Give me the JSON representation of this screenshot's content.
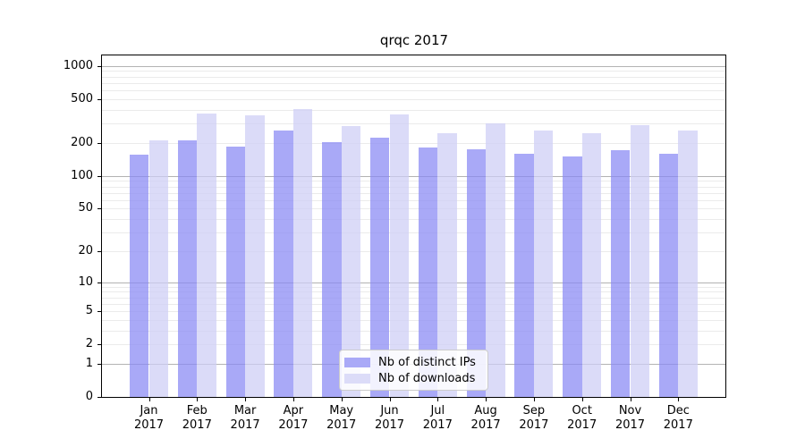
{
  "chart_data": {
    "type": "bar",
    "title": "qrqc 2017",
    "categories": [
      "Jan",
      "Feb",
      "Mar",
      "Apr",
      "May",
      "Jun",
      "Jul",
      "Aug",
      "Sep",
      "Oct",
      "Nov",
      "Dec"
    ],
    "category_year": "2017",
    "series": [
      {
        "name": "Nb of distinct IPs",
        "color": "#a9a9f7",
        "color_rgba": "rgba(136,136,244,0.72)",
        "values": [
          156,
          212,
          185,
          260,
          205,
          222,
          183,
          174,
          160,
          151,
          173,
          158
        ]
      },
      {
        "name": "Nb of downloads",
        "color": "#dcdcf8",
        "color_rgba": "rgba(205,205,245,0.72)",
        "values": [
          210,
          370,
          358,
          410,
          287,
          362,
          247,
          300,
          258,
          243,
          288,
          261
        ]
      }
    ],
    "xlabel": "",
    "ylabel": "",
    "yscale": "log1p",
    "yticks": [
      0,
      1,
      2,
      5,
      10,
      20,
      50,
      100,
      200,
      500,
      1000
    ],
    "ylim": [
      0,
      1250
    ],
    "grid": {
      "major_values": [
        1,
        10,
        100,
        1000
      ],
      "minor_bases": [
        1,
        10,
        100
      ],
      "major_color": "#b3b3b3",
      "minor_color": "#ebebeb"
    },
    "legend_position": "lower center"
  }
}
